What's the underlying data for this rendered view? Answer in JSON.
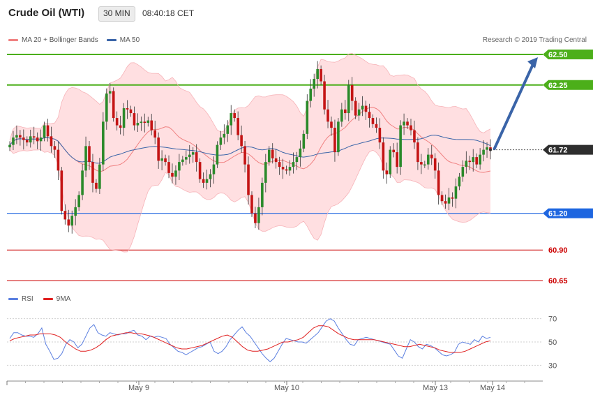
{
  "header": {
    "title": "Crude Oil (WTI)",
    "timeframe": "30 MIN",
    "time": "08:40:18 CET"
  },
  "legend_main": {
    "bb_label": "MA 20 + Bollinger Bands",
    "ma50_label": "MA 50",
    "bb_color": "#f08080",
    "ma50_color": "#3a64a8"
  },
  "credit": "Research © 2019 Trading Central",
  "legend_rsi": {
    "rsi_label": "RSI",
    "ma9_label": "9MA",
    "rsi_color": "#5b7fe0",
    "ma9_color": "#e02020"
  },
  "chart_data": [
    {
      "type": "candlestick",
      "title": "Crude Oil (WTI)",
      "ylim": [
        60.6,
        62.58
      ],
      "levels": [
        {
          "label": "62.50",
          "value": 62.5,
          "color": "#4caf1a"
        },
        {
          "label": "62.25",
          "value": 62.25,
          "color": "#4caf1a"
        },
        {
          "label": "61.72",
          "value": 61.72,
          "color": "#333333"
        },
        {
          "label": "61.20",
          "value": 61.2,
          "color": "#1e66e0"
        },
        {
          "label": "60.90",
          "value": 60.9,
          "color": "#cc0000"
        },
        {
          "label": "60.65",
          "value": 60.65,
          "color": "#cc0000"
        }
      ],
      "x_labels": [
        "May 9",
        "May 10",
        "May 13",
        "May 14"
      ],
      "close_series": [
        61.76,
        61.82,
        61.84,
        61.82,
        61.8,
        61.78,
        61.83,
        61.82,
        61.79,
        61.82,
        61.92,
        61.83,
        61.75,
        61.72,
        61.55,
        61.22,
        61.15,
        61.1,
        61.18,
        61.25,
        61.35,
        61.55,
        61.75,
        61.62,
        61.45,
        61.4,
        61.6,
        61.95,
        62.18,
        62.2,
        61.98,
        61.92,
        61.9,
        62.06,
        62.05,
        62.02,
        61.92,
        61.94,
        61.95,
        61.94,
        61.96,
        61.88,
        61.82,
        61.63,
        61.65,
        61.62,
        61.53,
        61.5,
        61.55,
        61.62,
        61.64,
        61.66,
        61.68,
        61.7,
        61.62,
        61.48,
        61.45,
        61.48,
        61.52,
        61.6,
        61.76,
        61.82,
        61.85,
        61.92,
        62.02,
        61.98,
        61.84,
        61.75,
        61.6,
        61.35,
        61.2,
        61.12,
        61.25,
        61.45,
        61.62,
        61.72,
        61.65,
        61.62,
        61.58,
        61.56,
        61.55,
        61.58,
        61.62,
        61.66,
        61.73,
        61.85,
        62.12,
        62.22,
        62.3,
        62.38,
        62.28,
        62.05,
        61.95,
        61.9,
        61.7,
        61.95,
        62.05,
        62.02,
        62.25,
        62.12,
        62.0,
        62.05,
        62.08,
        62.03,
        61.98,
        61.93,
        61.9,
        61.78,
        61.55,
        61.52,
        61.72,
        61.7,
        61.58,
        61.92,
        61.95,
        61.92,
        61.88,
        61.78,
        61.62,
        61.6,
        61.6,
        61.68,
        61.65,
        61.55,
        61.35,
        61.3,
        61.28,
        61.33,
        61.32,
        61.42,
        61.5,
        61.58,
        61.63,
        61.62,
        61.66,
        61.6,
        61.68,
        61.72,
        61.74,
        61.72
      ]
    },
    {
      "type": "line",
      "series": [
        {
          "name": "RSI",
          "color": "#5b7fe0",
          "values": [
            53,
            58,
            58,
            56,
            55,
            55,
            54,
            57,
            62,
            48,
            42,
            35,
            36,
            40,
            48,
            52,
            50,
            45,
            48,
            55,
            62,
            65,
            58,
            56,
            55,
            58,
            57,
            56,
            57,
            57,
            59,
            60,
            56,
            55,
            52,
            55,
            54,
            55,
            54,
            53,
            48,
            45,
            42,
            41,
            39,
            41,
            43,
            45,
            46,
            48,
            50,
            42,
            40,
            42,
            46,
            52,
            56,
            60,
            63,
            58,
            55,
            50,
            45,
            40,
            36,
            33,
            36,
            42,
            48,
            53,
            52,
            51,
            50,
            50,
            49,
            52,
            55,
            58,
            63,
            68,
            70,
            68,
            62,
            57,
            52,
            48,
            47,
            52,
            53,
            54,
            53,
            52,
            51,
            50,
            49,
            48,
            43,
            38,
            36,
            44,
            52,
            50,
            46,
            44,
            48,
            47,
            45,
            42,
            39,
            38,
            39,
            41,
            48,
            50,
            49,
            48,
            52,
            50,
            55,
            53,
            54
          ]
        },
        {
          "name": "9MA",
          "color": "#e02020",
          "values": [
            51,
            53,
            54,
            55,
            56,
            56,
            57,
            57,
            57,
            56,
            54,
            50,
            47,
            44,
            42,
            42,
            43,
            45,
            48,
            52,
            55,
            56,
            57,
            58,
            58,
            57,
            57,
            56,
            55,
            53,
            51,
            49,
            47,
            45,
            44,
            44,
            45,
            46,
            47,
            49,
            51,
            53,
            55,
            56,
            54,
            50,
            46,
            43,
            42,
            42,
            43,
            44,
            46,
            48,
            50,
            50,
            51,
            52,
            54,
            58,
            62,
            64,
            64,
            63,
            60,
            57,
            55,
            53,
            52,
            52,
            52,
            52,
            52,
            51,
            50,
            49,
            48,
            47,
            46,
            46,
            47,
            48,
            47,
            46,
            45,
            43,
            42,
            41,
            41,
            41,
            42,
            44,
            46,
            48,
            50,
            51
          ]
        }
      ],
      "ylim": [
        20,
        80
      ],
      "y_ticks": [
        "70",
        "50",
        "30"
      ]
    }
  ]
}
